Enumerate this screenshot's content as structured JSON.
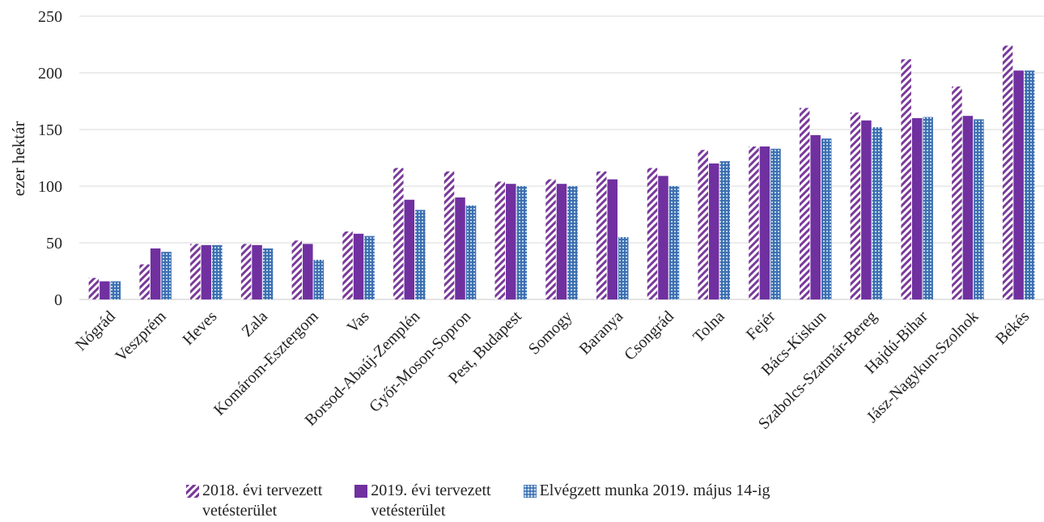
{
  "chart_data": {
    "type": "bar",
    "ylabel": "ezer hektár",
    "ylim": [
      0,
      250
    ],
    "yticks": [
      0,
      50,
      100,
      150,
      200,
      250
    ],
    "grid": true,
    "legend_position": "bottom",
    "categories": [
      "Nógrád",
      "Veszprém",
      "Heves",
      "Zala",
      "Komárom-Esztergom",
      "Vas",
      "Borsod-Abaúj-Zemplén",
      "Győr-Moson-Sopron",
      "Pest, Budapest",
      "Somogy",
      "Baranya",
      "Csongrád",
      "Tolna",
      "Fejér",
      "Bács-Kiskun",
      "Szabolcs-Szatmár-Bereg",
      "Hajdú-Bihar",
      "Jász-Nagykun-Szolnok",
      "Békés"
    ],
    "series": [
      {
        "name": "2018. évi tervezett vetésterület",
        "color": "#7a3a9a",
        "pattern": "diagonal-stripe",
        "values": [
          19,
          31,
          49,
          49,
          52,
          60,
          116,
          113,
          104,
          106,
          113,
          116,
          132,
          135,
          169,
          165,
          212,
          188,
          224
        ]
      },
      {
        "name": "2019. évi tervezett vetésterület",
        "color": "#7030a0",
        "pattern": "solid",
        "values": [
          16,
          45,
          48,
          48,
          49,
          58,
          88,
          90,
          102,
          102,
          106,
          109,
          120,
          135,
          145,
          158,
          160,
          162,
          202
        ]
      },
      {
        "name": "Elvégzett munka 2019. május 14-ig",
        "color": "#3d6fb0",
        "pattern": "dots",
        "values": [
          16,
          42,
          48,
          45,
          35,
          56,
          79,
          83,
          100,
          100,
          55,
          100,
          122,
          133,
          142,
          152,
          161,
          159,
          202
        ]
      }
    ]
  },
  "legend": [
    {
      "label": "2018. évi tervezett\nvetésterület"
    },
    {
      "label": "2019. évi tervezett\nvetésterület"
    },
    {
      "label": "Elvégzett munka 2019. május 14-ig"
    }
  ]
}
